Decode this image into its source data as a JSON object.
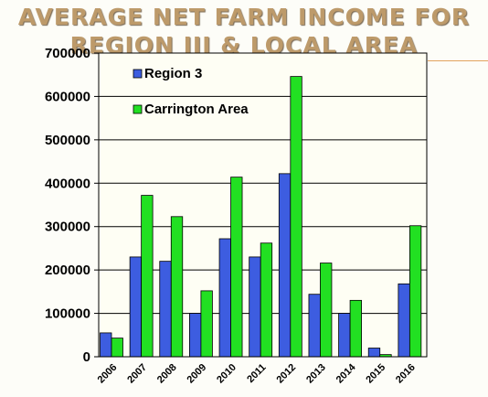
{
  "title": {
    "line1": "AVERAGE NET FARM INCOME FOR",
    "line2": "REGION III & LOCAL AREA"
  },
  "chart_data": {
    "type": "bar",
    "categories": [
      "2006",
      "2007",
      "2008",
      "2009",
      "2010",
      "2011",
      "2012",
      "2013",
      "2014",
      "2015",
      "2016"
    ],
    "series": [
      {
        "name": "Region 3",
        "color": "#3d5de0",
        "values": [
          55000,
          230000,
          220000,
          100000,
          272000,
          230000,
          422000,
          144000,
          100000,
          20000,
          168000
        ]
      },
      {
        "name": "Carrington Area",
        "color": "#22e022",
        "values": [
          43000,
          372000,
          323000,
          152000,
          414000,
          262000,
          646000,
          216000,
          130000,
          5000,
          302000
        ]
      }
    ],
    "ylim": [
      0,
      700000
    ],
    "yticks": [
      "0",
      "100000",
      "200000",
      "300000",
      "400000",
      "500000",
      "600000",
      "700000"
    ],
    "grid": true,
    "legend_position": "top-left"
  }
}
